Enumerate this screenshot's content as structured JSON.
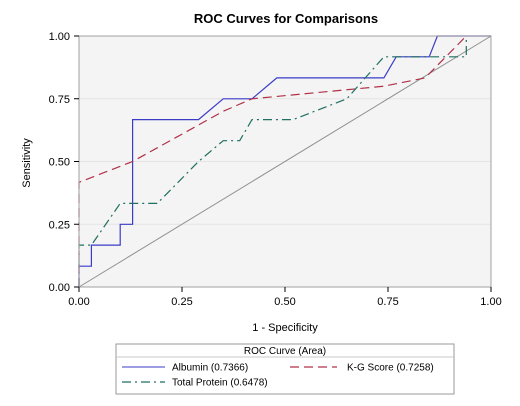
{
  "chart_data": {
    "type": "line",
    "title": "ROC Curves for Comparisons",
    "xlabel": "1 - Specificity",
    "ylabel": "Sensitivity",
    "xlim": [
      0,
      1
    ],
    "ylim": [
      0,
      1
    ],
    "x_ticks": [
      "0.00",
      "0.25",
      "0.50",
      "0.75",
      "1.00"
    ],
    "y_ticks": [
      "0.00",
      "0.25",
      "0.50",
      "0.75",
      "1.00"
    ],
    "grid": "horizontal",
    "legend": {
      "title": "ROC Curve (Area)",
      "placement": "bottom"
    },
    "colors": {
      "albumin": "#3b3bc8",
      "kg_score": "#b03048",
      "total_protein": "#1f7060",
      "reference": "#909090",
      "grid": "#e4e4e4",
      "plot_background": "#f4f4f4"
    },
    "series": [
      {
        "name": "Albumin",
        "label": "Albumin  (0.7366)",
        "area": 0.7366,
        "style": "solid",
        "x": [
          0,
          0,
          0.03,
          0.03,
          0.1,
          0.1,
          0.13,
          0.13,
          0.29,
          0.35,
          0.42,
          0.48,
          0.74,
          0.77,
          0.85,
          0.87,
          0.94,
          1.0
        ],
        "y": [
          0,
          0.083,
          0.083,
          0.167,
          0.167,
          0.25,
          0.25,
          0.667,
          0.667,
          0.75,
          0.75,
          0.833,
          0.833,
          0.917,
          0.917,
          1.0,
          1.0,
          1.0
        ]
      },
      {
        "name": "K-G Score",
        "label": "K-G Score  (0.7258)",
        "area": 0.7258,
        "style": "dashed",
        "x": [
          0,
          0,
          0.13,
          0.35,
          0.42,
          0.74,
          0.84,
          0.94
        ],
        "y": [
          0,
          0.417,
          0.5,
          0.7,
          0.75,
          0.8,
          0.833,
          1.0
        ]
      },
      {
        "name": "Total Protein",
        "label": "Total Protein  (0.6478)",
        "area": 0.6478,
        "style": "dashdot",
        "x": [
          0,
          0,
          0.03,
          0.1,
          0.19,
          0.29,
          0.35,
          0.39,
          0.42,
          0.52,
          0.65,
          0.74,
          0.87,
          0.94,
          0.94
        ],
        "y": [
          0,
          0.167,
          0.167,
          0.333,
          0.333,
          0.5,
          0.583,
          0.583,
          0.667,
          0.667,
          0.75,
          0.917,
          0.917,
          0.917,
          1.0
        ]
      }
    ]
  }
}
